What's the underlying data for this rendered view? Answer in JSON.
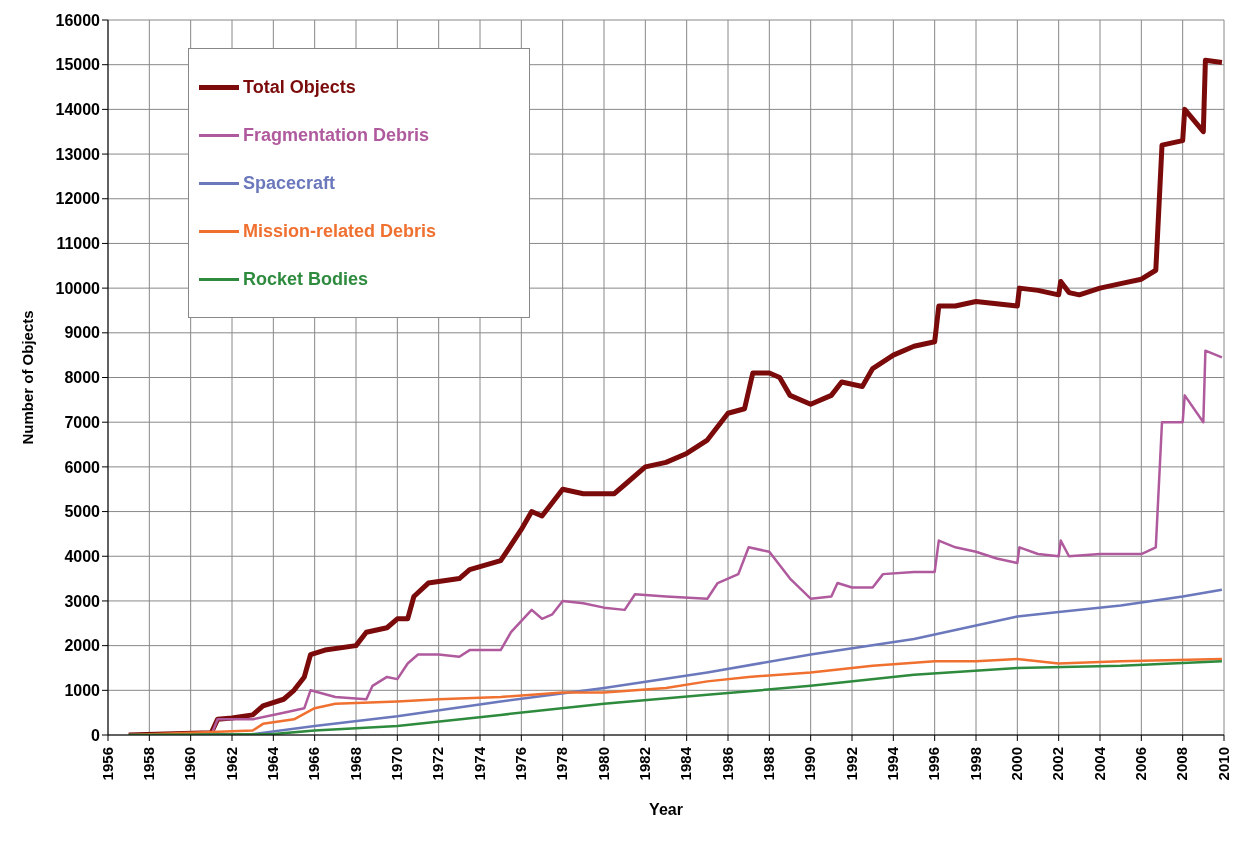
{
  "chart_data": {
    "type": "line",
    "xlabel": "Year",
    "ylabel": "Number of Objects",
    "xlim": [
      1956,
      2010
    ],
    "xticks": [
      1956,
      1958,
      1960,
      1962,
      1964,
      1966,
      1968,
      1970,
      1972,
      1974,
      1976,
      1978,
      1980,
      1982,
      1984,
      1986,
      1988,
      1990,
      1992,
      1994,
      1996,
      1998,
      2000,
      2002,
      2004,
      2006,
      2008,
      2010
    ],
    "ylim": [
      0,
      16000
    ],
    "yticks": [
      0,
      1000,
      2000,
      3000,
      4000,
      5000,
      6000,
      7000,
      8000,
      9000,
      10000,
      11000,
      12000,
      13000,
      14000,
      15000,
      16000
    ],
    "grid": true,
    "legend": "top left",
    "line_style": "solid",
    "series": [
      {
        "name": "Total Objects",
        "color": "#7b0a0a",
        "x": [
          1957,
          1961,
          1961.3,
          1962,
          1963,
          1963.5,
          1964.5,
          1965,
          1965.5,
          1965.8,
          1966.5,
          1968,
          1968.5,
          1969.5,
          1970,
          1970.5,
          1970.8,
          1971.5,
          1973,
          1973.5,
          1975,
          1976,
          1976.5,
          1977,
          1978,
          1979,
          1980.5,
          1981,
          1982,
          1983,
          1984,
          1985,
          1986,
          1986.8,
          1987.2,
          1988,
          1988.5,
          1989,
          1990,
          1991,
          1991.5,
          1992.5,
          1993,
          1994,
          1995,
          1996,
          1996.2,
          1997,
          1998,
          1999,
          2000,
          2000.1,
          2001,
          2002,
          2002.1,
          2002.5,
          2003,
          2004,
          2005,
          2006,
          2006.7,
          2007,
          2008,
          2008.1,
          2009,
          2009.1,
          2009.9
        ],
        "values": [
          0,
          50,
          350,
          380,
          450,
          650,
          800,
          1000,
          1300,
          1800,
          1900,
          2000,
          2300,
          2400,
          2600,
          2600,
          3100,
          3400,
          3500,
          3700,
          3900,
          4600,
          5000,
          4900,
          5500,
          5400,
          5400,
          5600,
          6000,
          6100,
          6300,
          6600,
          7200,
          7300,
          8100,
          8100,
          8000,
          7600,
          7400,
          7600,
          7900,
          7800,
          8200,
          8500,
          8700,
          8800,
          9600,
          9600,
          9700,
          9650,
          9600,
          10000,
          9950,
          9850,
          10150,
          9900,
          9850,
          10000,
          10100,
          10200,
          10400,
          13200,
          13300,
          14000,
          13500,
          15100,
          15050
        ]
      },
      {
        "name": "Fragmentation Debris",
        "color": "#b05a9e",
        "x": [
          1961,
          1961.3,
          1963,
          1964.5,
          1965.5,
          1965.8,
          1967,
          1968.5,
          1968.8,
          1969.5,
          1970,
          1970.5,
          1971,
          1972,
          1973,
          1973.5,
          1975,
          1975.5,
          1976.5,
          1977,
          1977.5,
          1978,
          1979,
          1980,
          1981,
          1981.5,
          1983,
          1985,
          1985.5,
          1986.5,
          1987,
          1988,
          1989,
          1990,
          1991,
          1991.3,
          1992,
          1993,
          1993.5,
          1995,
          1996,
          1996.2,
          1997,
          1998,
          1999,
          2000,
          2000.1,
          2001,
          2002,
          2002.1,
          2002.5,
          2004,
          2006,
          2006.7,
          2007,
          2008,
          2008.1,
          2009,
          2009.1,
          2009.9
        ],
        "values": [
          0,
          350,
          350,
          500,
          600,
          1000,
          850,
          800,
          1100,
          1300,
          1250,
          1600,
          1800,
          1800,
          1750,
          1900,
          1900,
          2300,
          2800,
          2600,
          2700,
          3000,
          2950,
          2850,
          2800,
          3150,
          3100,
          3050,
          3400,
          3600,
          4200,
          4100,
          3500,
          3050,
          3100,
          3400,
          3300,
          3300,
          3600,
          3650,
          3650,
          4350,
          4200,
          4100,
          3950,
          3850,
          4200,
          4050,
          4000,
          4350,
          4000,
          4050,
          4050,
          4200,
          7000,
          7000,
          7600,
          7000,
          8600,
          8450
        ]
      },
      {
        "name": "Spacecraft",
        "color": "#6b78bc",
        "x": [
          1957,
          1963,
          1966,
          1970,
          1975,
          1980,
          1985,
          1990,
          1995,
          1998,
          2000,
          2002,
          2005,
          2008,
          2009.9
        ],
        "values": [
          0,
          20,
          200,
          420,
          750,
          1050,
          1400,
          1800,
          2150,
          2450,
          2650,
          2750,
          2900,
          3100,
          3250
        ]
      },
      {
        "name": "Mission-related Debris",
        "color": "#f07030",
        "x": [
          1957,
          1963,
          1963.5,
          1965,
          1966,
          1967,
          1970,
          1972,
          1975,
          1978,
          1980,
          1983,
          1985,
          1987,
          1990,
          1993,
          1996,
          1998,
          2000,
          2002,
          2005,
          2009.9
        ],
        "values": [
          0,
          100,
          250,
          350,
          600,
          700,
          750,
          800,
          850,
          950,
          950,
          1050,
          1200,
          1300,
          1400,
          1550,
          1650,
          1650,
          1700,
          1600,
          1650,
          1700
        ]
      },
      {
        "name": "Rocket Bodies",
        "color": "#2e8b3e",
        "x": [
          1957,
          1964,
          1966,
          1970,
          1975,
          1980,
          1985,
          1990,
          1995,
          2000,
          2005,
          2009.9
        ],
        "values": [
          0,
          20,
          100,
          200,
          450,
          700,
          900,
          1100,
          1350,
          1500,
          1550,
          1650
        ]
      }
    ]
  }
}
